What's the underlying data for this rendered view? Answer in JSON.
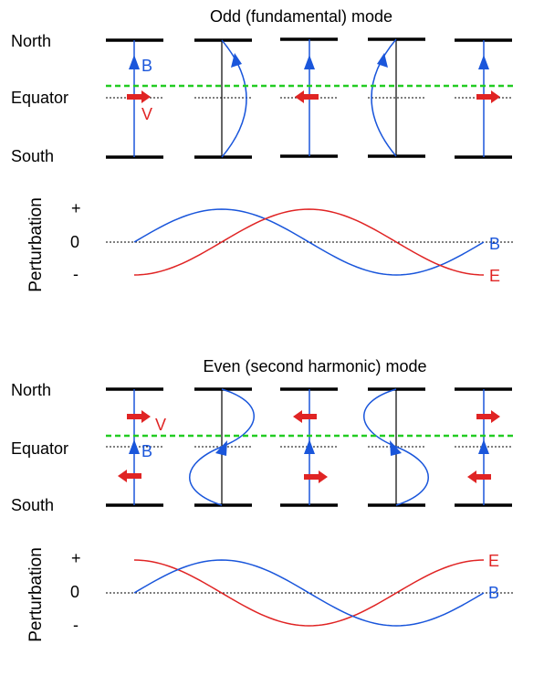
{
  "odd": {
    "title": "Odd (fundamental) mode",
    "labels": {
      "north": "North",
      "equator": "Equator",
      "south": "South"
    },
    "field_label": "B",
    "velocity_label": "V",
    "plot": {
      "ylabel": "Perturbation",
      "ticks": {
        "plus": "+",
        "zero": "0",
        "minus": "-"
      },
      "series": [
        {
          "name": "B",
          "color": "#1a56db"
        },
        {
          "name": "E",
          "color": "#e02424"
        }
      ]
    }
  },
  "even": {
    "title": "Even (second harmonic) mode",
    "labels": {
      "north": "North",
      "equator": "Equator",
      "south": "South"
    },
    "field_label": "B",
    "velocity_label": "V",
    "plot": {
      "ylabel": "Perturbation",
      "ticks": {
        "plus": "+",
        "zero": "0",
        "minus": "-"
      },
      "series": [
        {
          "name": "E",
          "color": "#e02424"
        },
        {
          "name": "B",
          "color": "#1a56db"
        }
      ]
    }
  },
  "colors": {
    "field": "#1a56db",
    "velocity": "#e02424",
    "equator": "#22cc22",
    "axis": "#000000"
  }
}
